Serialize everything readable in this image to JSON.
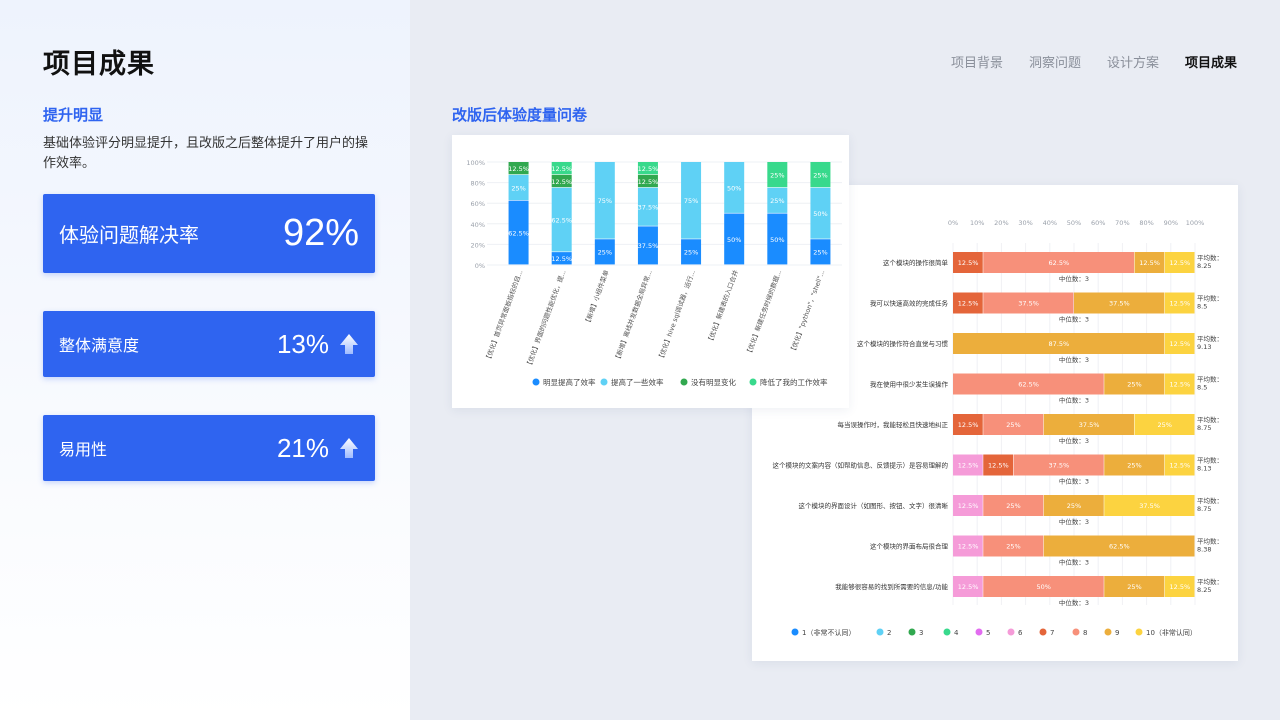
{
  "header": {
    "title": "项目成果",
    "nav": [
      "项目背景",
      "洞察问题",
      "设计方案",
      "项目成果"
    ],
    "active_index": 3
  },
  "left": {
    "section_title": "提升明显",
    "description": "基础体验评分明显提升，且改版之后整体提升了用户的操作效率。",
    "cards": [
      {
        "label": "体验问题解决率",
        "value": "92%",
        "arrow": false
      },
      {
        "label": "整体满意度",
        "value": "13%",
        "arrow": true
      },
      {
        "label": "易用性",
        "value": "21%",
        "arrow": true
      }
    ]
  },
  "right": {
    "section_title": "改版后体验度量问卷"
  },
  "colors": {
    "primary": "#2f64f0",
    "c1": "#1a8cff",
    "c2": "#5fd1f5",
    "c3": "#31a84f",
    "c4": "#38d98c",
    "c5": "#e26cf0",
    "c6": "#f59bd8",
    "c7": "#e4653a",
    "c8": "#f7907a",
    "c9": "#ecae3c",
    "c10": "#fcd340"
  },
  "chart_data": [
    {
      "type": "bar",
      "stacked": true,
      "y_ticks": [
        "0%",
        "20%",
        "40%",
        "60%",
        "80%",
        "100%"
      ],
      "ylim": [
        0,
        100
      ],
      "categories": [
        "【优化】首页异常面板指标的目...",
        "【优化】界面的问题性能优化，提...",
        "【新增】小组件菜单",
        "【新增】离线并发数据全局异常...",
        "【优化】hive sql调试器，运行...",
        "【优化】新建表的入口合并",
        "【优化】新建任务时候的数据...",
        "【优化】\"python\"，\"shell\"..."
      ],
      "series": [
        {
          "name": "明显提高了效率",
          "color_key": "c1",
          "values": [
            62.5,
            12.5,
            25,
            37.5,
            25,
            50,
            50,
            25
          ]
        },
        {
          "name": "提高了一些效率",
          "color_key": "c2",
          "values": [
            25,
            62.5,
            75,
            37.5,
            75,
            50,
            25,
            50
          ]
        },
        {
          "name": "没有明显变化",
          "color_key": "c3",
          "values": [
            12.5,
            12.5,
            0,
            12.5,
            0,
            0,
            0,
            0
          ]
        },
        {
          "name": "降低了我的工作效率",
          "color_key": "c4",
          "values": [
            0,
            12.5,
            0,
            12.5,
            0,
            0,
            25,
            25
          ]
        }
      ]
    },
    {
      "type": "bar",
      "stacked": true,
      "orientation": "horizontal",
      "x_ticks": [
        "0%",
        "10%",
        "20%",
        "30%",
        "40%",
        "50%",
        "60%",
        "70%",
        "80%",
        "90%",
        "100%"
      ],
      "xlim": [
        0,
        100
      ],
      "median_label": "中位数：3",
      "avg_label": "平均数：",
      "legend": [
        {
          "name": "1（非常不认同）",
          "color_key": "c1"
        },
        {
          "name": "2",
          "color_key": "c2"
        },
        {
          "name": "3",
          "color_key": "c3"
        },
        {
          "name": "4",
          "color_key": "c4"
        },
        {
          "name": "5",
          "color_key": "c5"
        },
        {
          "name": "6",
          "color_key": "c6"
        },
        {
          "name": "7",
          "color_key": "c7"
        },
        {
          "name": "8",
          "color_key": "c8"
        },
        {
          "name": "9",
          "color_key": "c9"
        },
        {
          "name": "10（非常认同）",
          "color_key": "c10"
        }
      ],
      "rows": [
        {
          "label": "这个模块的操作很简单",
          "avg": "8.25",
          "segments": [
            {
              "k": "c7",
              "v": 12.5
            },
            {
              "k": "c8",
              "v": 62.5
            },
            {
              "k": "c9",
              "v": 12.5
            },
            {
              "k": "c10",
              "v": 12.5
            }
          ]
        },
        {
          "label": "我可以快速高效的完成任务",
          "avg": "8.5",
          "segments": [
            {
              "k": "c7",
              "v": 12.5
            },
            {
              "k": "c8",
              "v": 37.5
            },
            {
              "k": "c9",
              "v": 37.5
            },
            {
              "k": "c10",
              "v": 12.5
            }
          ]
        },
        {
          "label": "这个模块的操作符合直觉与习惯",
          "avg": "9.13",
          "segments": [
            {
              "k": "c9",
              "v": 87.5
            },
            {
              "k": "c10",
              "v": 12.5
            }
          ]
        },
        {
          "label": "我在使用中很少发生误操作",
          "avg": "8.5",
          "segments": [
            {
              "k": "c8",
              "v": 62.5
            },
            {
              "k": "c9",
              "v": 25
            },
            {
              "k": "c10",
              "v": 12.5
            }
          ]
        },
        {
          "label": "每当误操作时，我能轻松且快速地纠正",
          "avg": "8.75",
          "segments": [
            {
              "k": "c7",
              "v": 12.5
            },
            {
              "k": "c8",
              "v": 25
            },
            {
              "k": "c9",
              "v": 37.5
            },
            {
              "k": "c10",
              "v": 25
            }
          ]
        },
        {
          "label": "这个模块的文案内容（如帮助信息、反馈提示）是容易理解的",
          "avg": "8.13",
          "segments": [
            {
              "k": "c6",
              "v": 12.5
            },
            {
              "k": "c7",
              "v": 12.5
            },
            {
              "k": "c8",
              "v": 37.5
            },
            {
              "k": "c9",
              "v": 25
            },
            {
              "k": "c10",
              "v": 12.5
            }
          ]
        },
        {
          "label": "这个模块的界面设计（如图形、按钮、文字）很清晰",
          "avg": "8.75",
          "segments": [
            {
              "k": "c6",
              "v": 12.5
            },
            {
              "k": "c8",
              "v": 25
            },
            {
              "k": "c9",
              "v": 25
            },
            {
              "k": "c10",
              "v": 37.5
            }
          ]
        },
        {
          "label": "这个模块的界面布局很合理",
          "avg": "8.38",
          "segments": [
            {
              "k": "c6",
              "v": 12.5
            },
            {
              "k": "c8",
              "v": 25
            },
            {
              "k": "c9",
              "v": 62.5
            }
          ]
        },
        {
          "label": "我能够很容易的找到所需要的信息/功能",
          "avg": "8.25",
          "segments": [
            {
              "k": "c6",
              "v": 12.5
            },
            {
              "k": "c8",
              "v": 50
            },
            {
              "k": "c9",
              "v": 25
            },
            {
              "k": "c10",
              "v": 12.5
            }
          ]
        }
      ]
    }
  ]
}
